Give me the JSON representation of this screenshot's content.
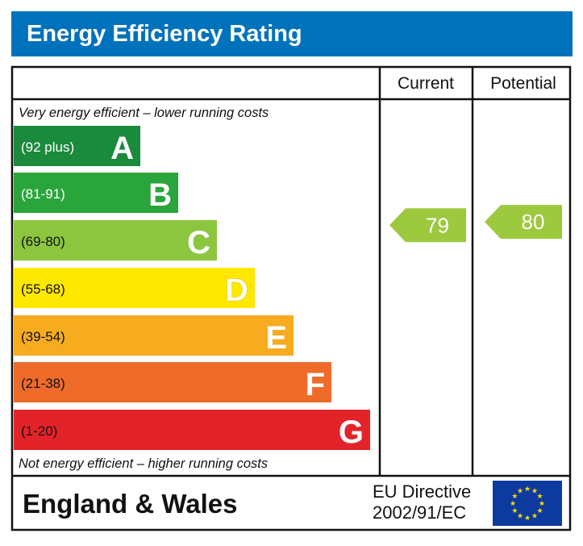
{
  "chart_data": {
    "type": "bar",
    "title": "Energy Efficiency Rating",
    "column_headers": [
      "Current",
      "Potential"
    ],
    "top_note": "Very energy efficient – lower running costs",
    "bottom_note": "Not energy efficient – higher running costs",
    "bands": [
      {
        "range": "(92 plus)",
        "letter": "A",
        "color": "#1a8a3c",
        "letter_color": "#ffffff"
      },
      {
        "range": "(81-91)",
        "letter": "B",
        "color": "#2aa53c",
        "letter_color": "#ffffff"
      },
      {
        "range": "(69-80)",
        "letter": "C",
        "color": "#8cc63f",
        "letter_color": "#ffffff"
      },
      {
        "range": "(55-68)",
        "letter": "D",
        "color": "#ffe800",
        "letter_color": "#ffffff"
      },
      {
        "range": "(39-54)",
        "letter": "E",
        "color": "#f7ab1f",
        "letter_color": "#ffffff"
      },
      {
        "range": "(21-38)",
        "letter": "F",
        "color": "#ef6b2a",
        "letter_color": "#ffffff"
      },
      {
        "range": "(1-20)",
        "letter": "G",
        "color": "#e3232a",
        "letter_color": "#ffffff"
      }
    ],
    "current": {
      "value": 79,
      "band": "C",
      "color": "#9dc93e"
    },
    "potential": {
      "value": 80,
      "band": "C",
      "color": "#9dc93e"
    },
    "title_color": "#0072bc"
  },
  "footer": {
    "region": "England & Wales",
    "directive_line1": "EU Directive",
    "directive_line2": "2002/91/EC",
    "flag": "eu-flag-icon"
  }
}
